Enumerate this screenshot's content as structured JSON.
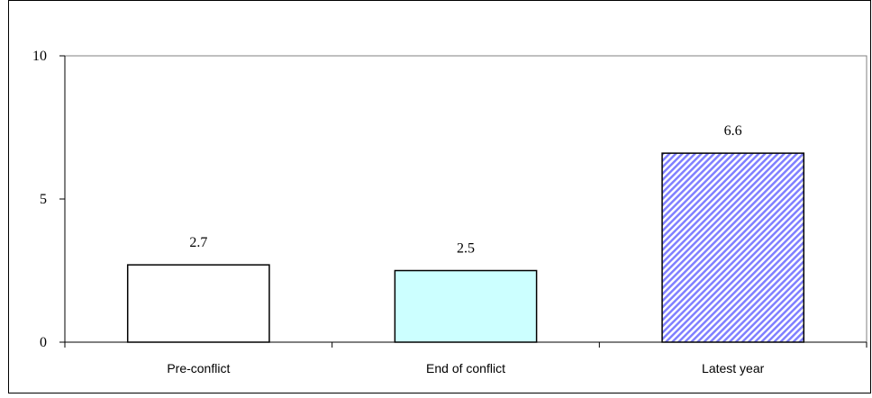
{
  "chart_data": {
    "type": "bar",
    "categories": [
      "Pre-conflict",
      "End of conflict",
      "Latest year"
    ],
    "values": [
      2.7,
      2.5,
      6.6
    ],
    "data_labels": [
      "2.7",
      "2.5",
      "6.6"
    ],
    "title": "",
    "xlabel": "",
    "ylabel": "",
    "ylim": [
      0,
      10
    ],
    "yticks": [
      0,
      5,
      10
    ],
    "grid": false,
    "bar_fills": [
      "#ffffff",
      "#ccffff",
      "hatched-blue"
    ],
    "hatch_colors": {
      "stripe": "#8080ff",
      "background": "#ffffff"
    }
  }
}
